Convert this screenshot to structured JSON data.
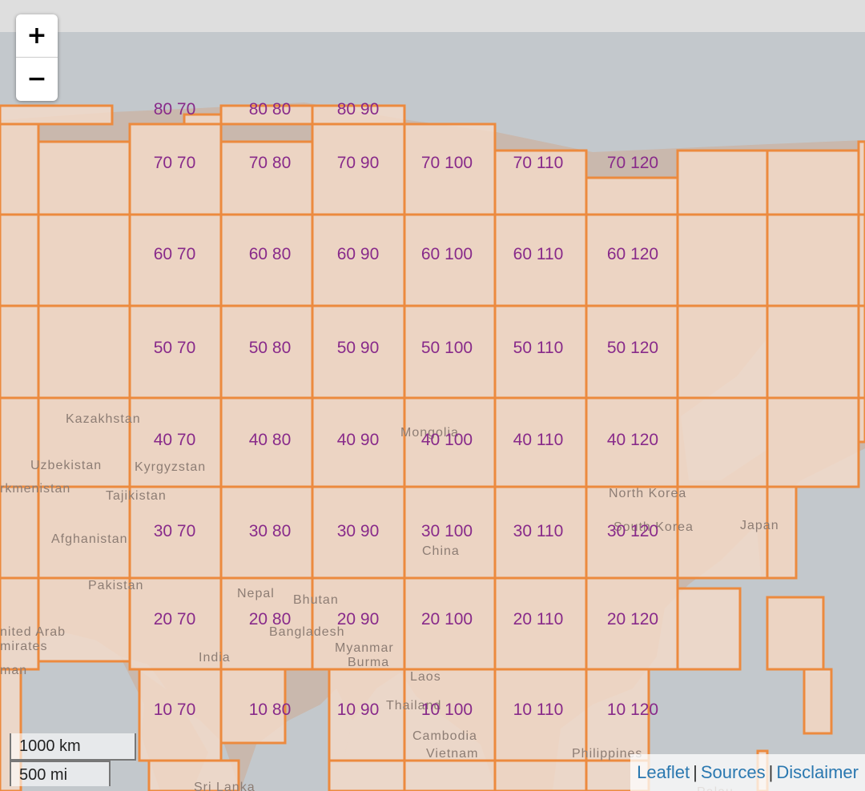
{
  "zoom_control": {
    "zoom_in_label": "+",
    "zoom_out_label": "−"
  },
  "scale": {
    "metric": "1000 km",
    "imperial": "500 mi"
  },
  "attribution": {
    "leaflet": "Leaflet",
    "sources": "Sources",
    "disclaimer": "Disclaimer",
    "separator": "|"
  },
  "countries": [
    {
      "name": "Kazakhstan"
    },
    {
      "name": "Uzbekistan"
    },
    {
      "name": "Kyrgyzstan"
    },
    {
      "name": "rkmenistan"
    },
    {
      "name": "Tajikistan"
    },
    {
      "name": "Afghanistan"
    },
    {
      "name": "Pakistan"
    },
    {
      "name": "Nepal"
    },
    {
      "name": "Bhutan"
    },
    {
      "name": "Bangladesh"
    },
    {
      "name": "India"
    },
    {
      "name": "Myanmar"
    },
    {
      "name": "Burma"
    },
    {
      "name": "Laos"
    },
    {
      "name": "Thailand"
    },
    {
      "name": "Cambodia"
    },
    {
      "name": "Vietnam"
    },
    {
      "name": "China"
    },
    {
      "name": "Mongolia"
    },
    {
      "name": "North Korea"
    },
    {
      "name": "South Korea"
    },
    {
      "name": "Japan"
    },
    {
      "name": "Philippines"
    },
    {
      "name": "nited Arab"
    },
    {
      "name": "mirates"
    },
    {
      "name": "man"
    },
    {
      "name": "Sri Lanka"
    },
    {
      "name": "Palau"
    }
  ],
  "tile_labels": [
    {
      "text": "80 70"
    },
    {
      "text": "80 80"
    },
    {
      "text": "80 90"
    },
    {
      "text": "70 70"
    },
    {
      "text": "70 80"
    },
    {
      "text": "70 90"
    },
    {
      "text": "70 100"
    },
    {
      "text": "70 110"
    },
    {
      "text": "70 120"
    },
    {
      "text": "60 70"
    },
    {
      "text": "60 80"
    },
    {
      "text": "60 90"
    },
    {
      "text": "60 100"
    },
    {
      "text": "60 110"
    },
    {
      "text": "60 120"
    },
    {
      "text": "50 70"
    },
    {
      "text": "50 80"
    },
    {
      "text": "50 90"
    },
    {
      "text": "50 100"
    },
    {
      "text": "50 110"
    },
    {
      "text": "50 120"
    },
    {
      "text": "40 70"
    },
    {
      "text": "40 80"
    },
    {
      "text": "40 90"
    },
    {
      "text": "40 100"
    },
    {
      "text": "40 110"
    },
    {
      "text": "40 120"
    },
    {
      "text": "30 70"
    },
    {
      "text": "30 80"
    },
    {
      "text": "30 90"
    },
    {
      "text": "30 100"
    },
    {
      "text": "30 110"
    },
    {
      "text": "30 120"
    },
    {
      "text": "20 70"
    },
    {
      "text": "20 80"
    },
    {
      "text": "20 90"
    },
    {
      "text": "20 100"
    },
    {
      "text": "20 110"
    },
    {
      "text": "20 120"
    },
    {
      "text": "10 70"
    },
    {
      "text": "10 80"
    },
    {
      "text": "10 90"
    },
    {
      "text": "10 100"
    },
    {
      "text": "10 110"
    },
    {
      "text": "10 120"
    }
  ],
  "colors": {
    "water": "#c3c8cc",
    "land": "#c9b8ad",
    "tile_fill": "#f4dac8",
    "tile_border": "#ec8a3e",
    "tile_label": "#882a8a",
    "country_label": "#8d7d74"
  }
}
